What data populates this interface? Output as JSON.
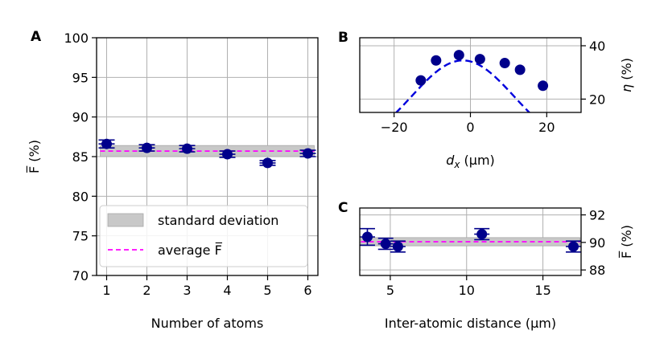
{
  "colors": {
    "marker": "#00008b",
    "fit": "#0000dd",
    "average": "#ff00ff",
    "band": "#c8c8c8",
    "grid": "#b0b0b0"
  },
  "chart_data": [
    {
      "id": "A",
      "panel_label": "A",
      "type": "scatter",
      "xlabel": "Number of atoms",
      "ylabel": "F̅ (%)",
      "xlim": [
        0.75,
        6.25
      ],
      "ylim": [
        70,
        100
      ],
      "xticks": [
        1,
        2,
        3,
        4,
        5,
        6
      ],
      "yticks": [
        70,
        75,
        80,
        85,
        90,
        95,
        100
      ],
      "grid": true,
      "points": [
        {
          "x": 1,
          "y": 86.6,
          "xerr": 0.2,
          "yerr": 0.5
        },
        {
          "x": 2,
          "y": 86.1,
          "xerr": 0.2,
          "yerr": 0.4
        },
        {
          "x": 3,
          "y": 86.0,
          "xerr": 0.2,
          "yerr": 0.4
        },
        {
          "x": 4,
          "y": 85.3,
          "xerr": 0.2,
          "yerr": 0.4
        },
        {
          "x": 5,
          "y": 84.2,
          "xerr": 0.2,
          "yerr": 0.3
        },
        {
          "x": 6,
          "y": 85.4,
          "xerr": 0.2,
          "yerr": 0.4
        }
      ],
      "average": 85.7,
      "std_band": [
        85.0,
        86.4
      ],
      "legend": {
        "position": "lower-left",
        "entries": [
          {
            "label": "standard deviation",
            "kind": "band"
          },
          {
            "label": "average F̅",
            "kind": "dashed"
          }
        ]
      }
    },
    {
      "id": "B",
      "panel_label": "B",
      "type": "scatter",
      "xlabel": "d_x (μm)",
      "xlabel_parts": {
        "var": "d",
        "sub": "x",
        "unit": " (μm)"
      },
      "ylabel": "η (%)",
      "ylabel_parts": {
        "var": "η",
        "unit": " (%)"
      },
      "xlim": [
        -29,
        29
      ],
      "ylim": [
        15,
        43
      ],
      "xticks": [
        -20,
        0,
        20
      ],
      "xtick_labels": [
        "−20",
        "0",
        "20"
      ],
      "yticks": [
        20,
        40
      ],
      "y_axis_side": "right",
      "grid": true,
      "points": [
        {
          "x": -13,
          "y": 27,
          "xerr": 1.2,
          "yerr": 0
        },
        {
          "x": -9,
          "y": 34.5,
          "xerr": 1.2,
          "yerr": 0
        },
        {
          "x": -3,
          "y": 36.5,
          "xerr": 1.2,
          "yerr": 0
        },
        {
          "x": 2.5,
          "y": 35,
          "xerr": 1.2,
          "yerr": 0
        },
        {
          "x": 9,
          "y": 33.5,
          "xerr": 1.2,
          "yerr": 0
        },
        {
          "x": 13,
          "y": 31,
          "xerr": 1.2,
          "yerr": 0
        },
        {
          "x": 19,
          "y": 25,
          "xerr": 1.2,
          "yerr": 0
        }
      ],
      "fit": {
        "type": "gaussian",
        "amplitude": 34.5,
        "center": -2,
        "sigma": 13.5
      }
    },
    {
      "id": "C",
      "panel_label": "C",
      "type": "scatter",
      "xlabel": "Inter-atomic distance (μm)",
      "ylabel": "F̅ (%)",
      "xlim": [
        3,
        17.5
      ],
      "ylim": [
        87.6,
        92.5
      ],
      "xticks": [
        5,
        10,
        15
      ],
      "yticks": [
        88,
        90,
        92
      ],
      "y_axis_side": "right",
      "grid": true,
      "points": [
        {
          "x": 3.5,
          "y": 90.4,
          "xerr": 0.5,
          "yerr": 0.6
        },
        {
          "x": 4.7,
          "y": 89.9,
          "xerr": 0.5,
          "yerr": 0.4
        },
        {
          "x": 5.5,
          "y": 89.7,
          "xerr": 0.5,
          "yerr": 0.4
        },
        {
          "x": 11,
          "y": 90.6,
          "xerr": 0.5,
          "yerr": 0.4
        },
        {
          "x": 17,
          "y": 89.7,
          "xerr": 0.5,
          "yerr": 0.4
        }
      ],
      "average": 90.05,
      "std_band": [
        89.75,
        90.35
      ]
    }
  ]
}
